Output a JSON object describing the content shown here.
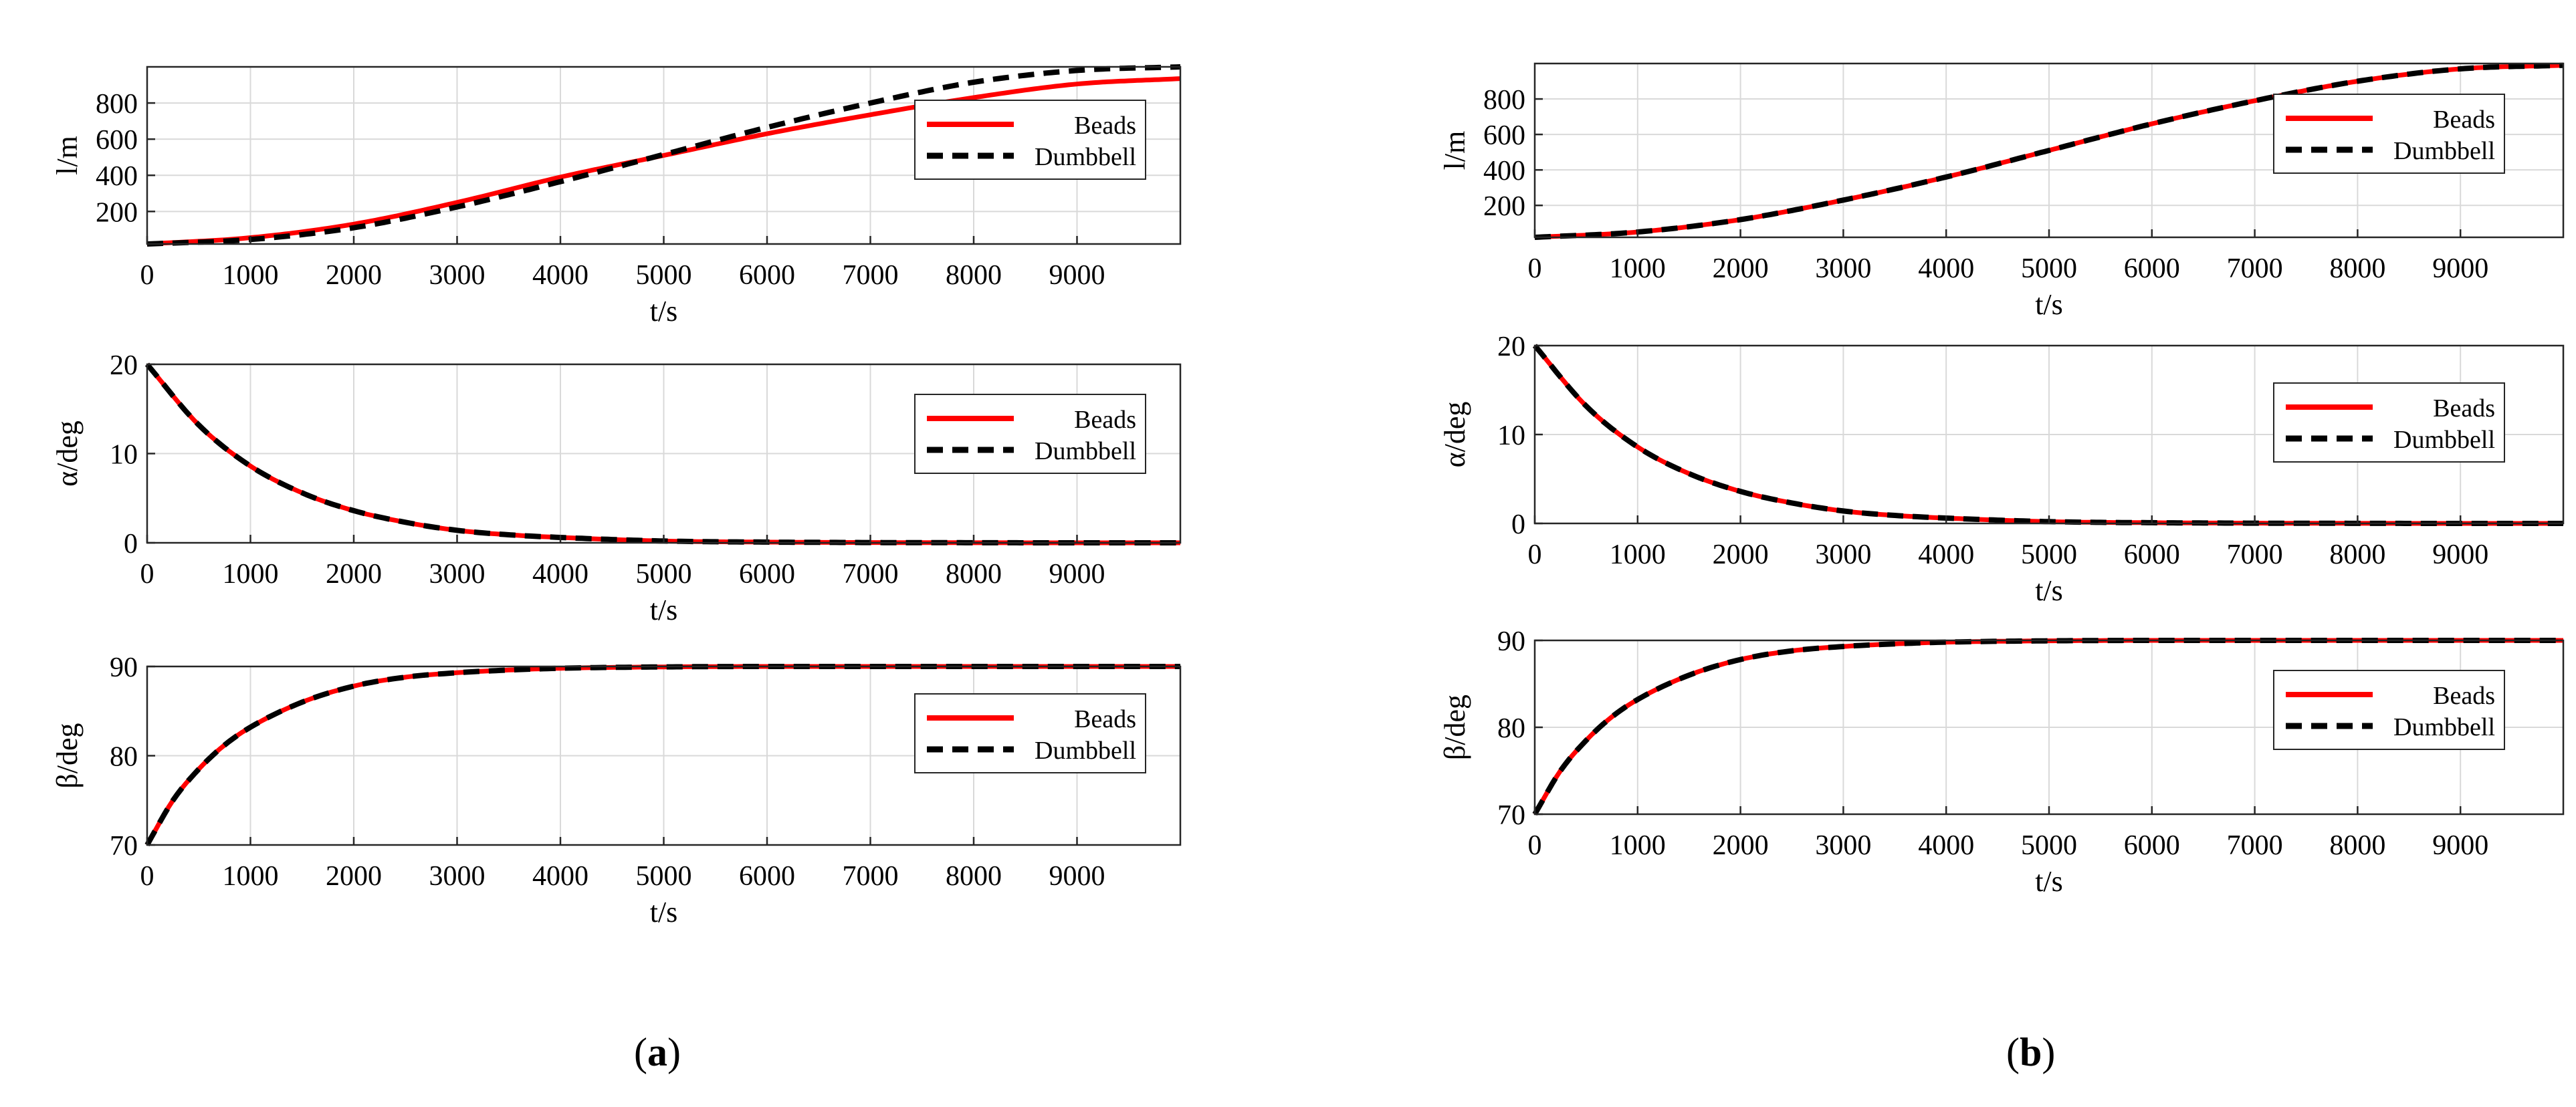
{
  "colors": {
    "beads": "#ff0000",
    "dumbbell": "#000000",
    "grid": "#d9d9d9",
    "axes": "#262626"
  },
  "panels": [
    {
      "id": "a",
      "caption": "a"
    },
    {
      "id": "b",
      "caption": "b"
    }
  ],
  "chart_data": [
    {
      "panel": "a",
      "type": "line",
      "ylabel": "l/m",
      "xlabel": "t/s",
      "xlim": [
        0,
        10000
      ],
      "ylim": [
        20,
        1000
      ],
      "xticks": [
        0,
        1000,
        2000,
        3000,
        4000,
        5000,
        6000,
        7000,
        8000,
        9000
      ],
      "yticks": [
        200,
        400,
        600,
        800
      ],
      "legend": [
        "Beads",
        "Dumbbell"
      ],
      "legend_position": "top-right",
      "x": [
        0,
        1000,
        2000,
        3000,
        4000,
        5000,
        6000,
        7000,
        8000,
        9000,
        10000
      ],
      "series": [
        {
          "name": "Beads",
          "values": [
            20,
            55,
            130,
            250,
            390,
            510,
            630,
            735,
            830,
            905,
            935
          ]
        },
        {
          "name": "Dumbbell",
          "values": [
            20,
            45,
            110,
            225,
            365,
            515,
            665,
            800,
            915,
            980,
            1000
          ]
        }
      ]
    },
    {
      "panel": "a",
      "type": "line",
      "ylabel": "α/deg",
      "xlabel": "t/s",
      "xlim": [
        0,
        10000
      ],
      "ylim": [
        0,
        20
      ],
      "xticks": [
        0,
        1000,
        2000,
        3000,
        4000,
        5000,
        6000,
        7000,
        8000,
        9000
      ],
      "yticks": [
        0,
        10,
        20
      ],
      "legend": [
        "Beads",
        "Dumbbell"
      ],
      "legend_position": "top-right",
      "x": [
        0,
        500,
        1000,
        1500,
        2000,
        2500,
        3000,
        3500,
        4000,
        5000,
        6000,
        7000,
        8000,
        9000,
        10000
      ],
      "series": [
        {
          "name": "Beads",
          "values": [
            20,
            13.2,
            8.6,
            5.6,
            3.6,
            2.3,
            1.4,
            0.9,
            0.6,
            0.2,
            0.08,
            0.03,
            0.01,
            0,
            0
          ]
        },
        {
          "name": "Dumbbell",
          "values": [
            20,
            13.2,
            8.6,
            5.6,
            3.6,
            2.3,
            1.4,
            0.9,
            0.6,
            0.2,
            0.08,
            0.03,
            0.01,
            0,
            0
          ]
        }
      ]
    },
    {
      "panel": "a",
      "type": "line",
      "ylabel": "β/deg",
      "xlabel": "t/s",
      "xlim": [
        0,
        10000
      ],
      "ylim": [
        70,
        90
      ],
      "xticks": [
        0,
        1000,
        2000,
        3000,
        4000,
        5000,
        6000,
        7000,
        8000,
        9000
      ],
      "yticks": [
        70,
        80,
        90
      ],
      "legend": [
        "Beads",
        "Dumbbell"
      ],
      "legend_position": "top-right",
      "x": [
        0,
        250,
        500,
        750,
        1000,
        1500,
        2000,
        2500,
        3000,
        3500,
        4000,
        5000,
        6000,
        7000,
        8000,
        9000,
        10000
      ],
      "series": [
        {
          "name": "Beads",
          "values": [
            70,
            75,
            78.5,
            81.2,
            83.2,
            86.0,
            87.8,
            88.8,
            89.3,
            89.6,
            89.8,
            89.95,
            90,
            90,
            90,
            90,
            90
          ]
        },
        {
          "name": "Dumbbell",
          "values": [
            70,
            75,
            78.5,
            81.2,
            83.2,
            86.0,
            87.8,
            88.8,
            89.3,
            89.6,
            89.8,
            89.95,
            90,
            90,
            90,
            90,
            90
          ]
        }
      ]
    },
    {
      "panel": "b",
      "type": "line",
      "ylabel": "l/m",
      "xlabel": "t/s",
      "xlim": [
        0,
        10000
      ],
      "ylim": [
        20,
        1000
      ],
      "xticks": [
        0,
        1000,
        2000,
        3000,
        4000,
        5000,
        6000,
        7000,
        8000,
        9000
      ],
      "yticks": [
        200,
        400,
        600,
        800
      ],
      "legend": [
        "Beads",
        "Dumbbell"
      ],
      "legend_position": "top-right",
      "x": [
        0,
        1000,
        2000,
        3000,
        4000,
        5000,
        6000,
        7000,
        8000,
        9000,
        10000
      ],
      "series": [
        {
          "name": "Beads",
          "values": [
            20,
            50,
            120,
            230,
            360,
            510,
            660,
            790,
            900,
            970,
            990
          ]
        },
        {
          "name": "Dumbbell",
          "values": [
            20,
            50,
            120,
            230,
            360,
            510,
            660,
            790,
            900,
            970,
            990
          ]
        }
      ]
    },
    {
      "panel": "b",
      "type": "line",
      "ylabel": "α/deg",
      "xlabel": "t/s",
      "xlim": [
        0,
        10000
      ],
      "ylim": [
        0,
        20
      ],
      "xticks": [
        0,
        1000,
        2000,
        3000,
        4000,
        5000,
        6000,
        7000,
        8000,
        9000
      ],
      "yticks": [
        0,
        10,
        20
      ],
      "legend": [
        "Beads",
        "Dumbbell"
      ],
      "legend_position": "top-right",
      "x": [
        0,
        500,
        1000,
        1500,
        2000,
        2500,
        3000,
        3500,
        4000,
        5000,
        6000,
        7000,
        8000,
        9000,
        10000
      ],
      "series": [
        {
          "name": "Beads",
          "values": [
            20,
            13.2,
            8.6,
            5.6,
            3.6,
            2.3,
            1.4,
            0.9,
            0.6,
            0.2,
            0.08,
            0.03,
            0.01,
            0,
            0
          ]
        },
        {
          "name": "Dumbbell",
          "values": [
            20,
            13.2,
            8.6,
            5.6,
            3.6,
            2.3,
            1.4,
            0.9,
            0.6,
            0.2,
            0.08,
            0.03,
            0.01,
            0,
            0
          ]
        }
      ]
    },
    {
      "panel": "b",
      "type": "line",
      "ylabel": "β/deg",
      "xlabel": "t/s",
      "xlim": [
        0,
        10000
      ],
      "ylim": [
        70,
        90
      ],
      "xticks": [
        0,
        1000,
        2000,
        3000,
        4000,
        5000,
        6000,
        7000,
        8000,
        9000
      ],
      "yticks": [
        70,
        80,
        90
      ],
      "legend": [
        "Beads",
        "Dumbbell"
      ],
      "legend_position": "top-right",
      "x": [
        0,
        250,
        500,
        750,
        1000,
        1500,
        2000,
        2500,
        3000,
        3500,
        4000,
        5000,
        6000,
        7000,
        8000,
        9000,
        10000
      ],
      "series": [
        {
          "name": "Beads",
          "values": [
            70,
            75,
            78.5,
            81.2,
            83.2,
            86.0,
            87.8,
            88.8,
            89.3,
            89.6,
            89.8,
            89.95,
            90,
            90,
            90,
            90,
            90
          ]
        },
        {
          "name": "Dumbbell",
          "values": [
            70,
            75,
            78.5,
            81.2,
            83.2,
            86.0,
            87.8,
            88.8,
            89.3,
            89.6,
            89.8,
            89.95,
            90,
            90,
            90,
            90,
            90
          ]
        }
      ]
    }
  ]
}
